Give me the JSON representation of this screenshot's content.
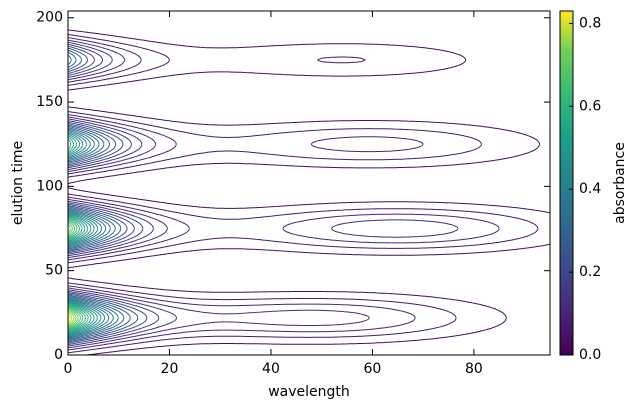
{
  "chart_data": {
    "type": "contour",
    "xlabel": "wavelength",
    "ylabel": "elution time",
    "colorbar_label": "absorbance",
    "xlim": [
      0,
      95
    ],
    "ylim": [
      0,
      204
    ],
    "xticks": [
      0,
      20,
      40,
      60,
      80
    ],
    "yticks": [
      0,
      50,
      100,
      150,
      200
    ],
    "clim": [
      0,
      0.83
    ],
    "cticks": [
      {
        "value": 0,
        "label": "0.0"
      },
      {
        "value": 0.2,
        "label": "0.2"
      },
      {
        "value": 0.4,
        "label": "0.4"
      },
      {
        "value": 0.6,
        "label": "0.6"
      },
      {
        "value": 0.8,
        "label": "0.8"
      }
    ],
    "colormap": "viridis",
    "levels": [
      0.03,
      0.06,
      0.09,
      0.12,
      0.15,
      0.18,
      0.21,
      0.24,
      0.27,
      0.3,
      0.33,
      0.36,
      0.39,
      0.42,
      0.45,
      0.48,
      0.51,
      0.54,
      0.57,
      0.6,
      0.63,
      0.66,
      0.69,
      0.72,
      0.75,
      0.78,
      0.81
    ],
    "peaks": [
      {
        "time": 22,
        "amplitude": 0.83,
        "width": 9,
        "decay": 10,
        "band_center": 50,
        "band_amplitude": 0.13,
        "band_width": 30
      },
      {
        "time": 75,
        "amplitude": 0.75,
        "width": 9,
        "decay": 10,
        "band_center": 65,
        "band_amplitude": 0.14,
        "band_width": 30
      },
      {
        "time": 125,
        "amplitude": 0.6,
        "width": 9,
        "decay": 10,
        "band_center": 60,
        "band_amplitude": 0.1,
        "band_width": 30
      },
      {
        "time": 175,
        "amplitude": 0.35,
        "width": 8,
        "decay": 10,
        "band_center": 55,
        "band_amplitude": 0.06,
        "band_width": 28
      }
    ]
  }
}
